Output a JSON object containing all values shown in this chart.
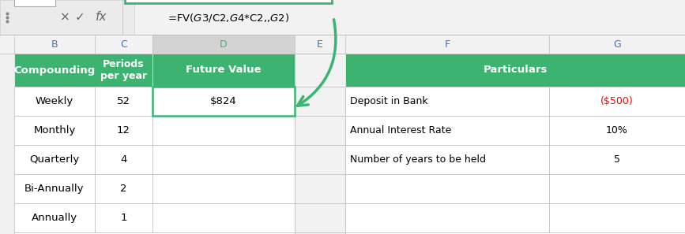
{
  "formula_bar_text": "=FV($G$3/C2,$G$4*C2,,$G$2)",
  "green_color": "#3CB371",
  "header_text_color": "#FFFFFF",
  "red_text_color": "#FF0000",
  "formula_box_border_color": "#3CB371",
  "col_letters": [
    "B",
    "C",
    "D",
    "E",
    "F",
    "G"
  ],
  "col_letter_colors": [
    "#4472C4",
    "#4472C4",
    "#3CB371",
    "#4472C4",
    "#4472C4",
    "#4472C4"
  ],
  "header_labels": [
    "Compounding",
    "Periods\nper year",
    "Future Value",
    "",
    "Particulars",
    ""
  ],
  "rows": [
    [
      "Weekly",
      "52",
      "$824",
      "",
      "Deposit in Bank",
      "($500)"
    ],
    [
      "Monthly",
      "12",
      "",
      "",
      "Annual Interest Rate",
      "10%"
    ],
    [
      "Quarterly",
      "4",
      "",
      "",
      "Number of years to be held",
      "5"
    ],
    [
      "Bi-Annually",
      "2",
      "",
      "",
      "",
      ""
    ],
    [
      "Annually",
      "1",
      "",
      "",
      "",
      ""
    ]
  ],
  "formula_bar_bg": "#F2F2F2",
  "col_header_bg": "#F2F2F2",
  "cell_bg": "#FFFFFF",
  "grid_color": "#BDBDBD",
  "overall_bg": "#F0F0F0",
  "d_col_header_bg": "#D3D3D3",
  "e_col_bg": "#F2F2F2"
}
